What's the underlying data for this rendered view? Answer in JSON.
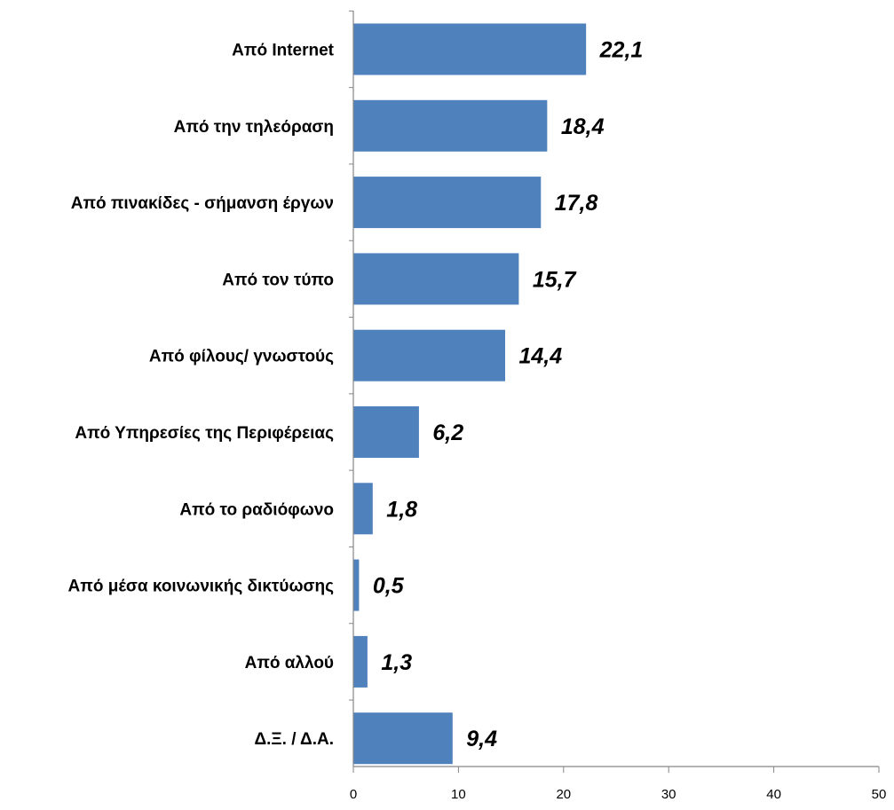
{
  "colors": {
    "bar": "#4f81bd",
    "axis": "#868686",
    "text": "#000000",
    "background": "#ffffff"
  },
  "chart_data": {
    "type": "bar",
    "orientation": "horizontal",
    "categories": [
      "Από Internet",
      "Από την τηλεόραση",
      "Από πινακίδες - σήμανση έργων",
      "Από τον τύπο",
      "Από φίλους/ γνωστούς",
      "Από Υπηρεσίες της Περιφέρειας",
      "Από το ραδιόφωνο",
      "Από μέσα κοινωνικής δικτύωσης",
      "Από αλλού",
      "Δ.Ξ. / Δ.Α."
    ],
    "values": [
      22.1,
      18.4,
      17.8,
      15.7,
      14.4,
      6.2,
      1.8,
      0.5,
      1.3,
      9.4
    ],
    "value_labels": [
      "22,1",
      "18,4",
      "17,8",
      "15,7",
      "14,4",
      "6,2",
      "1,8",
      "0,5",
      "1,3",
      "9,4"
    ],
    "xlim": [
      0,
      50
    ],
    "x_ticks": [
      0,
      10,
      20,
      30,
      40,
      50
    ],
    "x_tick_labels": [
      "0",
      "10",
      "20",
      "30",
      "40",
      "50"
    ],
    "grid": false,
    "legend": "none"
  }
}
